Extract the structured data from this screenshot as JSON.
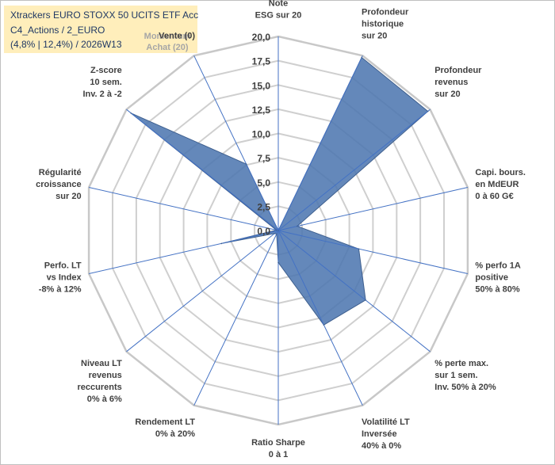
{
  "chart_data": {
    "type": "radar",
    "title_lines": [
      "Xtrackers EURO STOXX 50 UCITS ETF Acc",
      "C4_Actions / 2_EURO",
      "(4,8% | 12,4%) / 2026W13"
    ],
    "legend": [
      "Momentum",
      "Achat (20)"
    ],
    "rlim": [
      0,
      20
    ],
    "ticks": [
      "0,0",
      "2,5",
      "5,0",
      "7,5",
      "10,0",
      "12,5",
      "15,0",
      "17,5",
      "20,0"
    ],
    "tick_values": [
      0,
      2.5,
      5,
      7.5,
      10,
      12.5,
      15,
      17.5,
      20
    ],
    "categories": [
      [
        "Note",
        "ESG sur 20"
      ],
      [
        "Profondeur",
        "historique",
        "sur 20"
      ],
      [
        "Profondeur",
        "revenus",
        "sur 20"
      ],
      [
        "Capi. bours.",
        "en MdEUR",
        "0 à 60 G€"
      ],
      [
        "% perfo 1A",
        "positive",
        "50% à 80%"
      ],
      [
        "% perte max.",
        "sur 1 sem.",
        "Inv. 50% à 20%"
      ],
      [
        "Volatilité LT",
        "Inversée",
        "40% à 0%"
      ],
      [
        "Ratio Sharpe",
        "0 à 1"
      ],
      [
        "Rendement LT",
        "0% à 20%"
      ],
      [
        "Niveau LT",
        "revenus",
        "reccurents",
        "0% à 6%"
      ],
      [
        "Perfo. LT",
        "vs Index",
        "-8% à 12%"
      ],
      [
        "Régularité",
        "croissance",
        "sur 20"
      ],
      [
        "Z-score",
        "10 sem.",
        "Inv. 2 à -2"
      ],
      [
        "Vente (0)"
      ]
    ],
    "series": [
      {
        "name": "Momentum Achat (20)",
        "values": [
          0,
          19.8,
          19.7,
          2.0,
          8.5,
          11.5,
          10.8,
          3.3,
          0.4,
          0.5,
          6.0,
          0.2,
          19.4,
          7.6
        ],
        "color": "#4f78b0"
      }
    ]
  }
}
